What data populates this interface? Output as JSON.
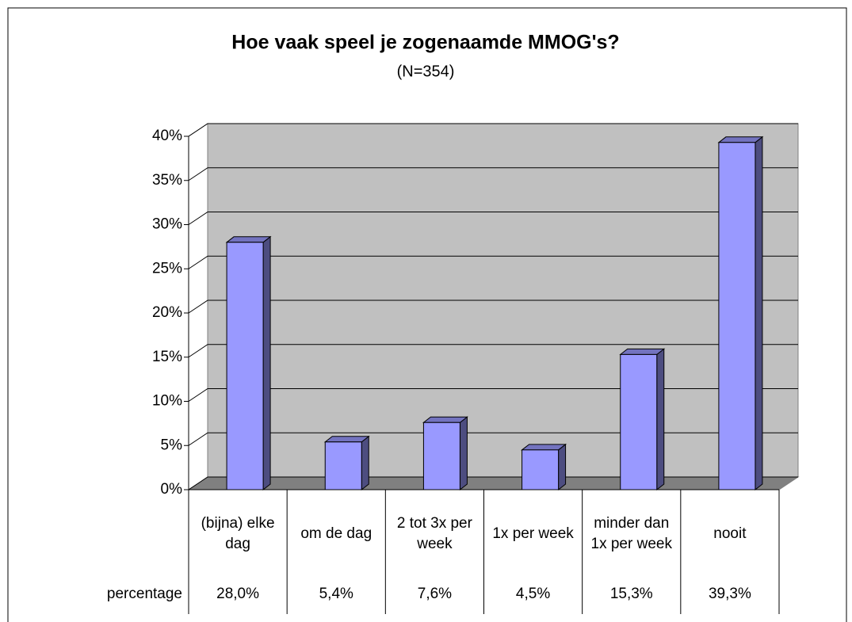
{
  "chart_data": {
    "type": "bar3d",
    "title": "Hoe vaak speel je zogenaamde MMOG's?",
    "subtitle": "(N=354)",
    "categories": [
      "(bijna) elke dag",
      "om de dag",
      "2 tot 3x per week",
      "1x per week",
      "minder dan 1x per week",
      "nooit"
    ],
    "series": [
      {
        "name": "percentage",
        "color": "#9999ff",
        "values": [
          28.0,
          5.4,
          7.6,
          4.5,
          15.3,
          39.3
        ],
        "value_labels": [
          "28,0%",
          "5,4%",
          "7,6%",
          "4,5%",
          "15,3%",
          "39,3%"
        ]
      }
    ],
    "ylim": [
      0,
      40
    ],
    "yticks": [
      {
        "value": 0,
        "label": "0%"
      },
      {
        "value": 5,
        "label": "5%"
      },
      {
        "value": 10,
        "label": "10%"
      },
      {
        "value": 15,
        "label": "15%"
      },
      {
        "value": 20,
        "label": "20%"
      },
      {
        "value": 25,
        "label": "25%"
      },
      {
        "value": 30,
        "label": "30%"
      },
      {
        "value": 35,
        "label": "35%"
      },
      {
        "value": 40,
        "label": "40%"
      }
    ],
    "grid": true
  }
}
